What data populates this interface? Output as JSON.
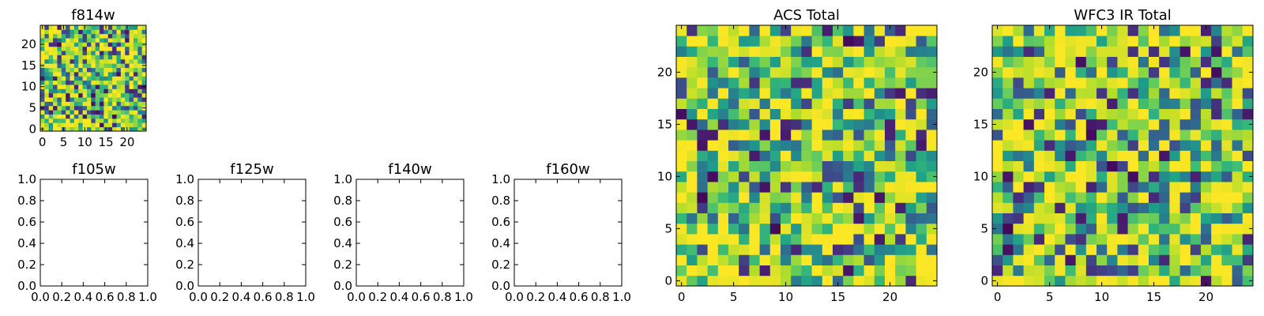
{
  "chart_data": [
    {
      "type": "heatmap",
      "title": "f814w",
      "xlim": [
        -0.5,
        24.5
      ],
      "ylim": [
        -0.5,
        24.5
      ],
      "xticks": [
        0,
        5,
        10,
        15,
        20
      ],
      "yticks": [
        0,
        5,
        10,
        15,
        20
      ],
      "grid_size": [
        25,
        25
      ],
      "colormap": "viridis",
      "value_range": [
        0,
        1
      ],
      "seed": 11
    },
    {
      "type": "heatmap",
      "title": "ACS Total",
      "xlim": [
        -0.5,
        24.5
      ],
      "ylim": [
        -0.5,
        24.5
      ],
      "xticks": [
        0,
        5,
        10,
        15,
        20
      ],
      "yticks": [
        0,
        5,
        10,
        15,
        20
      ],
      "grid_size": [
        25,
        25
      ],
      "colormap": "viridis",
      "value_range": [
        0,
        1
      ],
      "seed": 23
    },
    {
      "type": "heatmap",
      "title": "WFC3 IR Total",
      "xlim": [
        -0.5,
        24.5
      ],
      "ylim": [
        -0.5,
        24.5
      ],
      "xticks": [
        0,
        5,
        10,
        15,
        20
      ],
      "yticks": [
        0,
        5,
        10,
        15,
        20
      ],
      "grid_size": [
        25,
        25
      ],
      "colormap": "viridis",
      "value_range": [
        0,
        1
      ],
      "seed": 37
    },
    {
      "type": "line",
      "title": "f105w",
      "series": [],
      "xlim": [
        0,
        1
      ],
      "ylim": [
        0,
        1
      ],
      "xticks": [
        "0.0",
        "0.2",
        "0.4",
        "0.6",
        "0.8",
        "1.0"
      ],
      "yticks": [
        "0.0",
        "0.2",
        "0.4",
        "0.6",
        "0.8",
        "1.0"
      ]
    },
    {
      "type": "line",
      "title": "f125w",
      "series": [],
      "xlim": [
        0,
        1
      ],
      "ylim": [
        0,
        1
      ],
      "xticks": [
        "0.0",
        "0.2",
        "0.4",
        "0.6",
        "0.8",
        "1.0"
      ],
      "yticks": [
        "0.0",
        "0.2",
        "0.4",
        "0.6",
        "0.8",
        "1.0"
      ]
    },
    {
      "type": "line",
      "title": "f140w",
      "series": [],
      "xlim": [
        0,
        1
      ],
      "ylim": [
        0,
        1
      ],
      "xticks": [
        "0.0",
        "0.2",
        "0.4",
        "0.6",
        "0.8",
        "1.0"
      ],
      "yticks": [
        "0.0",
        "0.2",
        "0.4",
        "0.6",
        "0.8",
        "1.0"
      ]
    },
    {
      "type": "line",
      "title": "f160w",
      "series": [],
      "xlim": [
        0,
        1
      ],
      "ylim": [
        0,
        1
      ],
      "xticks": [
        "0.0",
        "0.2",
        "0.4",
        "0.6",
        "0.8",
        "1.0"
      ],
      "yticks": [
        "0.0",
        "0.2",
        "0.4",
        "0.6",
        "0.8",
        "1.0"
      ]
    }
  ]
}
